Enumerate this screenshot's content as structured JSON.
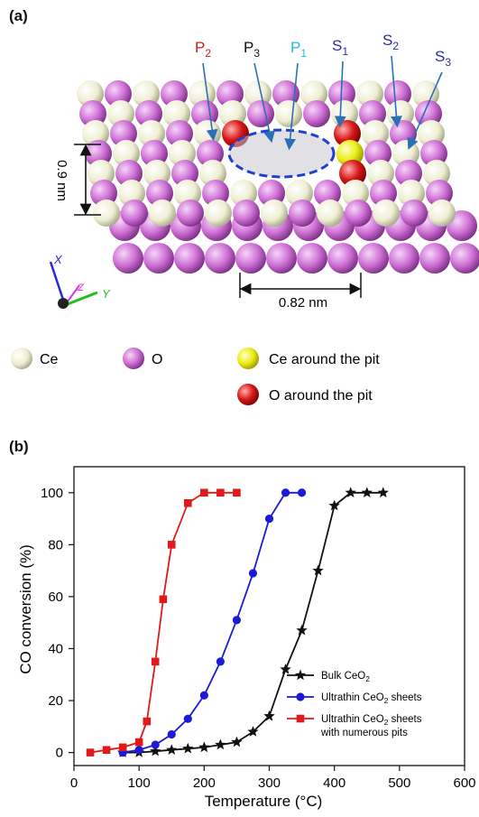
{
  "panel_a": {
    "label": "(a)",
    "site_labels": [
      {
        "main": "P",
        "sub": "2",
        "color": "#d11a1a"
      },
      {
        "main": "P",
        "sub": "3",
        "color": "#111111"
      },
      {
        "main": "P",
        "sub": "1",
        "color": "#22b8e0"
      },
      {
        "main": "S",
        "sub": "1",
        "color": "#2a2aa8"
      },
      {
        "main": "S",
        "sub": "2",
        "color": "#2a2aa8"
      },
      {
        "main": "S",
        "sub": "3",
        "color": "#2a2aa8"
      }
    ],
    "dim_thickness": "0.9 nm",
    "dim_width": "0.82 nm",
    "axes": {
      "x": "X",
      "y": "Y",
      "z": "Z"
    },
    "legend": {
      "ce": "Ce",
      "o": "O",
      "ce_pit": "Ce around the pit",
      "o_pit": "O around the pit"
    },
    "colors": {
      "ce": "#eeeed2",
      "o": "#cf72d6",
      "ce_pit": "#eded1a",
      "o_pit": "#d81818"
    }
  },
  "panel_b": {
    "label": "(b)"
  },
  "chart_data": {
    "type": "line",
    "xlabel": "Temperature (°C)",
    "ylabel": "CO conversion (%)",
    "xlim": [
      0,
      600
    ],
    "ylim": [
      -5,
      110
    ],
    "xticks": [
      0,
      100,
      200,
      300,
      400,
      500,
      600
    ],
    "yticks": [
      0,
      20,
      40,
      60,
      80,
      100
    ],
    "legend_position": "bottom-right",
    "series": [
      {
        "name": "Bulk CeO2",
        "label_main": "Bulk CeO",
        "label_sub": "2",
        "label_tail": "",
        "label_line2": "",
        "color": "#111111",
        "marker": "star",
        "x": [
          75,
          100,
          125,
          150,
          175,
          200,
          225,
          250,
          275,
          300,
          325,
          350,
          375,
          400,
          425,
          450,
          475
        ],
        "y": [
          0,
          0,
          0.5,
          1,
          1.5,
          2,
          3,
          4,
          8,
          14,
          32,
          47,
          70,
          95,
          100,
          100,
          100
        ]
      },
      {
        "name": "Ultrathin CeO2 sheets",
        "label_main": "Ultrathin CeO",
        "label_sub": "2",
        "label_tail": " sheets",
        "label_line2": "",
        "color": "#1a1ad8",
        "marker": "circle",
        "x": [
          75,
          100,
          125,
          150,
          175,
          200,
          225,
          250,
          275,
          300,
          325,
          350
        ],
        "y": [
          0,
          1,
          3,
          7,
          13,
          22,
          35,
          51,
          69,
          90,
          100,
          100
        ]
      },
      {
        "name": "Ultrathin CeO2 sheets with numerous pits",
        "label_main": "Ultrathin CeO",
        "label_sub": "2",
        "label_tail": " sheets",
        "label_line2": "with numerous pits",
        "color": "#e01a1a",
        "marker": "square",
        "x": [
          25,
          50,
          75,
          100,
          112,
          125,
          137,
          150,
          175,
          200,
          225,
          250
        ],
        "y": [
          0,
          1,
          2,
          4,
          12,
          35,
          59,
          80,
          96,
          100,
          100,
          100
        ]
      }
    ]
  }
}
